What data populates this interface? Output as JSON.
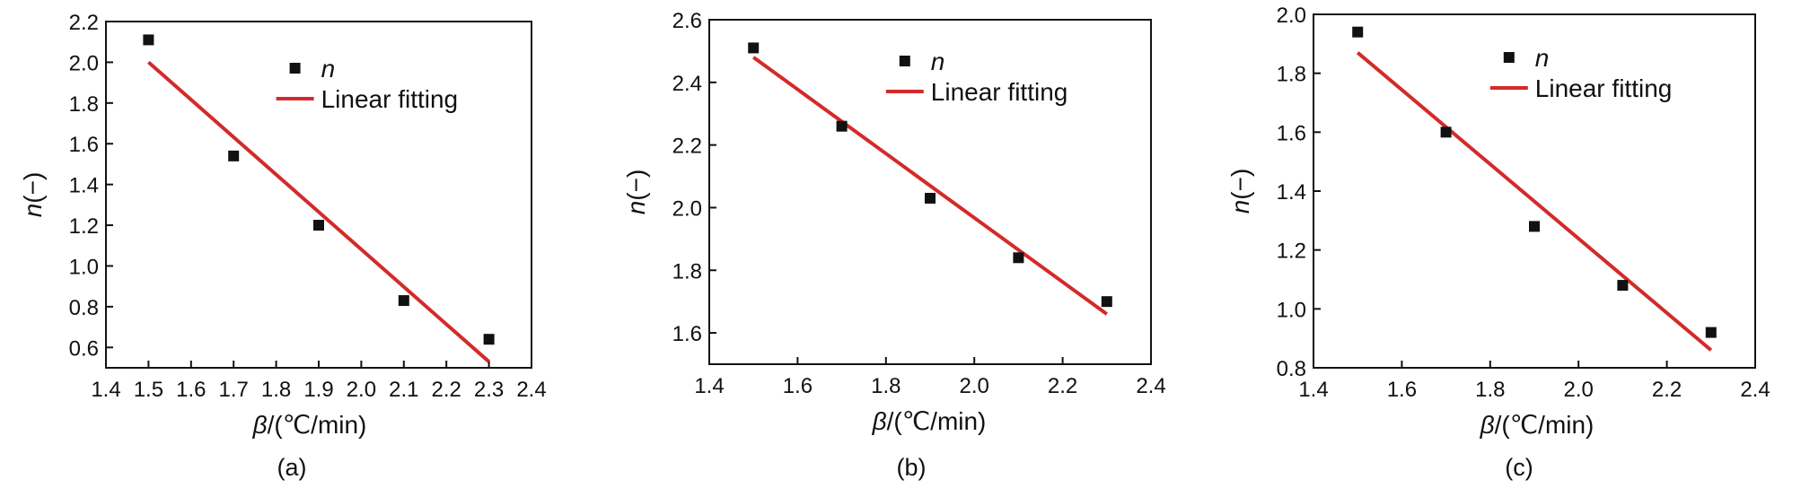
{
  "chart_data": [
    {
      "type": "scatter",
      "panel_label": "(a)",
      "xlabel_symbol": "β",
      "xlabel_unit": "/(℃/min)",
      "ylabel_symbol": "n",
      "ylabel_unit": "(−)",
      "xlim": [
        1.4,
        2.4
      ],
      "ylim": [
        0.5,
        2.2
      ],
      "xticks": [
        1.4,
        1.5,
        1.6,
        1.7,
        1.8,
        1.9,
        2.0,
        2.1,
        2.2,
        2.3,
        2.4
      ],
      "xtick_labels": [
        "1.4",
        "1.5",
        "1.6",
        "1.7",
        "1.8",
        "1.9",
        "2.0",
        "2.1",
        "2.2",
        "2.3",
        "2.4"
      ],
      "yticks": [
        0.6,
        0.8,
        1.0,
        1.2,
        1.4,
        1.6,
        1.8,
        2.0,
        2.2
      ],
      "ytick_labels": [
        "0.6",
        "0.8",
        "1.0",
        "1.2",
        "1.4",
        "1.6",
        "1.8",
        "2.0",
        "2.2"
      ],
      "legend": {
        "placement": "top-right",
        "entries": [
          {
            "label": "n",
            "marker": "square"
          },
          {
            "label": "Linear fitting",
            "marker": "line"
          }
        ]
      },
      "series": [
        {
          "name": "n",
          "kind": "scatter",
          "color": "#111111",
          "x": [
            1.5,
            1.7,
            1.9,
            2.1,
            2.3
          ],
          "y": [
            2.11,
            1.54,
            1.2,
            0.83,
            0.64
          ]
        },
        {
          "name": "Linear fitting",
          "kind": "line",
          "color": "#d42a2a",
          "x": [
            1.5,
            2.3
          ],
          "y": [
            2.0,
            0.53
          ]
        }
      ],
      "grid": false
    },
    {
      "type": "scatter",
      "panel_label": "(b)",
      "xlabel_symbol": "β",
      "xlabel_unit": "/(℃/min)",
      "ylabel_symbol": "n",
      "ylabel_unit": "(−)",
      "xlim": [
        1.4,
        2.4
      ],
      "ylim": [
        1.5,
        2.6
      ],
      "xticks": [
        1.4,
        1.6,
        1.8,
        2.0,
        2.2,
        2.4
      ],
      "xtick_labels": [
        "1.4",
        "1.6",
        "1.8",
        "2.0",
        "2.2",
        "2.4"
      ],
      "yticks": [
        1.6,
        1.8,
        2.0,
        2.2,
        2.4,
        2.6
      ],
      "ytick_labels": [
        "1.6",
        "1.8",
        "2.0",
        "2.2",
        "2.4",
        "2.6"
      ],
      "legend": {
        "placement": "top-right",
        "entries": [
          {
            "label": "n",
            "marker": "square"
          },
          {
            "label": "Linear fitting",
            "marker": "line"
          }
        ]
      },
      "series": [
        {
          "name": "n",
          "kind": "scatter",
          "color": "#111111",
          "x": [
            1.5,
            1.7,
            1.9,
            2.1,
            2.3
          ],
          "y": [
            2.51,
            2.26,
            2.03,
            1.84,
            1.7
          ]
        },
        {
          "name": "Linear fitting",
          "kind": "line",
          "color": "#d42a2a",
          "x": [
            1.5,
            2.3
          ],
          "y": [
            2.48,
            1.66
          ]
        }
      ],
      "grid": false
    },
    {
      "type": "scatter",
      "panel_label": "(c)",
      "xlabel_symbol": "β",
      "xlabel_unit": "/(℃/min)",
      "ylabel_symbol": "n",
      "ylabel_unit": "(−)",
      "xlim": [
        1.4,
        2.4
      ],
      "ylim": [
        0.8,
        2.0
      ],
      "xticks": [
        1.4,
        1.6,
        1.8,
        2.0,
        2.2,
        2.4
      ],
      "xtick_labels": [
        "1.4",
        "1.6",
        "1.8",
        "2.0",
        "2.2",
        "2.4"
      ],
      "yticks": [
        0.8,
        1.0,
        1.2,
        1.4,
        1.6,
        1.8,
        2.0
      ],
      "ytick_labels": [
        "0.8",
        "1.0",
        "1.2",
        "1.4",
        "1.6",
        "1.8",
        "2.0"
      ],
      "legend": {
        "placement": "top-right",
        "entries": [
          {
            "label": "n",
            "marker": "square"
          },
          {
            "label": "Linear fitting",
            "marker": "line"
          }
        ]
      },
      "series": [
        {
          "name": "n",
          "kind": "scatter",
          "color": "#111111",
          "x": [
            1.5,
            1.7,
            1.9,
            2.1,
            2.3
          ],
          "y": [
            1.94,
            1.6,
            1.28,
            1.08,
            0.92
          ]
        },
        {
          "name": "Linear fitting",
          "kind": "line",
          "color": "#d42a2a",
          "x": [
            1.5,
            2.3
          ],
          "y": [
            1.87,
            0.86
          ]
        }
      ],
      "grid": false
    }
  ]
}
